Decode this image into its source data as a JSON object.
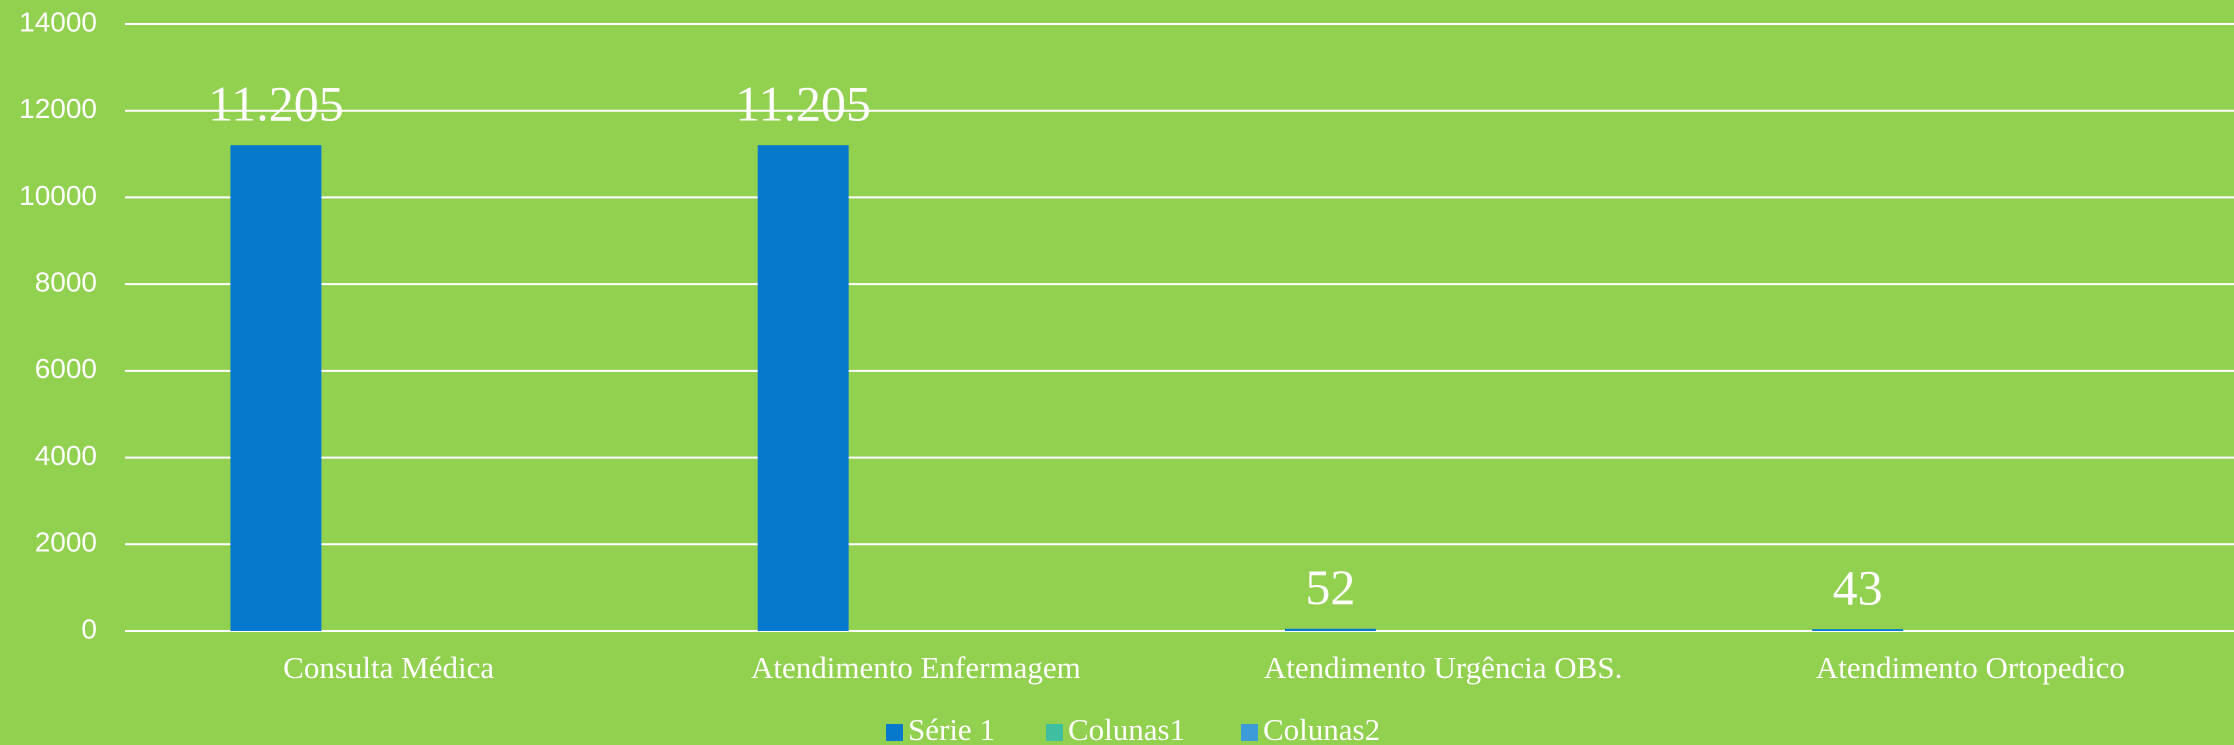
{
  "chart_data": {
    "type": "bar",
    "categories": [
      "Consulta Médica",
      "Atendimento Enfermagem",
      "Atendimento Urgência OBS.",
      "Atendimento Ortopedico"
    ],
    "series": [
      {
        "name": "Série 1",
        "color": "#0779cc",
        "values": [
          11205,
          11205,
          52,
          43
        ],
        "value_labels": [
          "11.205",
          "11.205",
          "52",
          "43"
        ]
      },
      {
        "name": "Colunas1",
        "color": "#3fbfa0",
        "values": [
          null,
          null,
          null,
          null
        ]
      },
      {
        "name": "Colunas2",
        "color": "#3d9bd8",
        "values": [
          null,
          null,
          null,
          null
        ]
      }
    ],
    "ylim": [
      0,
      14000
    ],
    "yticks": [
      0,
      2000,
      4000,
      6000,
      8000,
      10000,
      12000,
      14000
    ],
    "grid": true,
    "legend": "bottom",
    "background": "#92d050"
  }
}
